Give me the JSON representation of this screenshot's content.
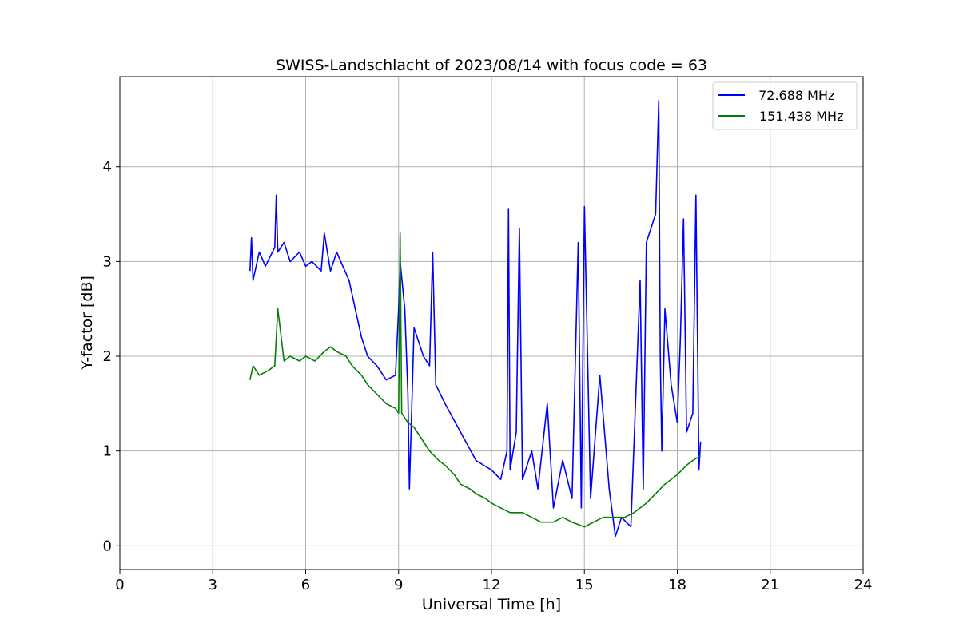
{
  "chart_data": {
    "type": "line",
    "title": "SWISS-Landschlacht of 2023/08/14 with focus code = 63",
    "xlabel": "Universal Time [h]",
    "ylabel": "Y-factor [dB]",
    "xlim": [
      0,
      24
    ],
    "ylim": [
      -0.25,
      4.95
    ],
    "xticks": [
      0,
      3,
      6,
      9,
      12,
      15,
      18,
      21,
      24
    ],
    "yticks": [
      0,
      1,
      2,
      3,
      4
    ],
    "grid": true,
    "legend_position": "top-right",
    "series": [
      {
        "name": " 72.688 MHz",
        "color": "#0000ff",
        "x": [
          4.2,
          4.25,
          4.3,
          4.5,
          4.7,
          5.0,
          5.05,
          5.1,
          5.3,
          5.5,
          5.8,
          6.0,
          6.2,
          6.5,
          6.6,
          6.8,
          7.0,
          7.2,
          7.4,
          7.6,
          7.8,
          8.0,
          8.3,
          8.6,
          8.9,
          9.0,
          9.05,
          9.2,
          9.3,
          9.35,
          9.5,
          9.8,
          10.0,
          10.1,
          10.2,
          10.5,
          11.0,
          11.5,
          12.0,
          12.3,
          12.5,
          12.55,
          12.6,
          12.8,
          12.9,
          13.0,
          13.3,
          13.5,
          13.8,
          14.0,
          14.3,
          14.6,
          14.8,
          14.9,
          15.0,
          15.2,
          15.5,
          15.8,
          16.0,
          16.2,
          16.5,
          16.8,
          16.9,
          17.0,
          17.2,
          17.3,
          17.4,
          17.45,
          17.5,
          17.6,
          17.8,
          18.0,
          18.1,
          18.2,
          18.3,
          18.5,
          18.6,
          18.7,
          18.75
        ],
        "values": [
          2.9,
          3.25,
          2.8,
          3.1,
          2.95,
          3.15,
          3.7,
          3.1,
          3.2,
          3.0,
          3.1,
          2.95,
          3.0,
          2.9,
          3.3,
          2.9,
          3.1,
          2.95,
          2.8,
          2.5,
          2.2,
          2.0,
          1.9,
          1.75,
          1.8,
          2.5,
          3.0,
          2.5,
          1.6,
          0.6,
          2.3,
          2.0,
          1.9,
          3.1,
          1.7,
          1.5,
          1.2,
          0.9,
          0.8,
          0.7,
          1.0,
          3.55,
          0.8,
          1.2,
          3.35,
          0.7,
          1.0,
          0.6,
          1.5,
          0.4,
          0.9,
          0.5,
          3.2,
          0.4,
          3.58,
          0.5,
          1.8,
          0.6,
          0.1,
          0.3,
          0.2,
          2.8,
          0.6,
          3.2,
          3.4,
          3.5,
          4.7,
          2.0,
          1.0,
          2.5,
          1.7,
          1.3,
          2.2,
          3.45,
          1.2,
          1.4,
          3.7,
          0.8,
          1.1
        ]
      },
      {
        "name": "151.438 MHz",
        "color": "#008000",
        "x": [
          4.2,
          4.3,
          4.5,
          4.8,
          5.0,
          5.1,
          5.3,
          5.5,
          5.8,
          6.0,
          6.3,
          6.6,
          6.8,
          7.0,
          7.3,
          7.5,
          7.8,
          8.0,
          8.3,
          8.6,
          8.9,
          9.0,
          9.05,
          9.1,
          9.3,
          9.5,
          9.8,
          10.0,
          10.3,
          10.5,
          10.8,
          11.0,
          11.3,
          11.5,
          11.8,
          12.0,
          12.3,
          12.6,
          13.0,
          13.3,
          13.6,
          14.0,
          14.3,
          14.6,
          15.0,
          15.3,
          15.6,
          16.0,
          16.3,
          16.6,
          17.0,
          17.3,
          17.6,
          18.0,
          18.3,
          18.5,
          18.75
        ],
        "values": [
          1.75,
          1.9,
          1.8,
          1.85,
          1.9,
          2.5,
          1.95,
          2.0,
          1.95,
          2.0,
          1.95,
          2.05,
          2.1,
          2.05,
          2.0,
          1.9,
          1.8,
          1.7,
          1.6,
          1.5,
          1.45,
          1.4,
          3.3,
          1.4,
          1.3,
          1.25,
          1.1,
          1.0,
          0.9,
          0.85,
          0.75,
          0.65,
          0.6,
          0.55,
          0.5,
          0.45,
          0.4,
          0.35,
          0.35,
          0.3,
          0.25,
          0.25,
          0.3,
          0.25,
          0.2,
          0.25,
          0.3,
          0.3,
          0.3,
          0.35,
          0.45,
          0.55,
          0.65,
          0.75,
          0.85,
          0.9,
          0.95
        ]
      }
    ]
  }
}
